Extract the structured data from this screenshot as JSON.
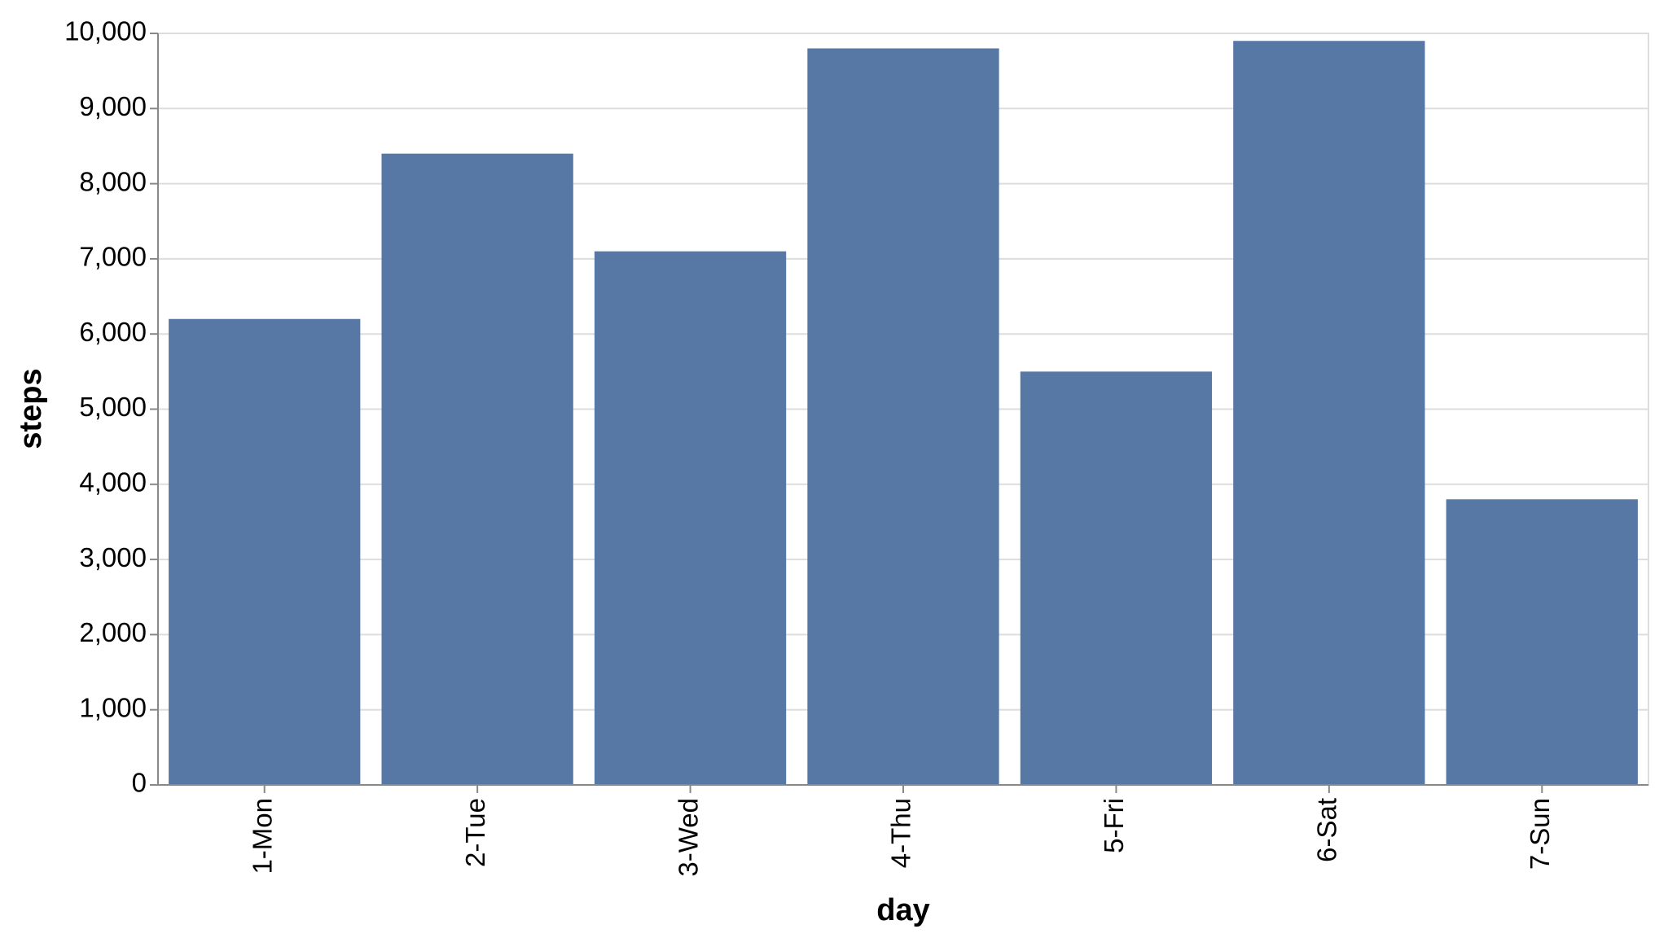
{
  "chart_data": {
    "type": "bar",
    "x_label": "day",
    "y_label": "steps",
    "categories": [
      "1-Mon",
      "2-Tue",
      "3-Wed",
      "4-Thu",
      "5-Fri",
      "6-Sat",
      "7-Sun"
    ],
    "values": [
      6200,
      8400,
      7100,
      9800,
      5500,
      9900,
      3800
    ],
    "color": "#5778a4",
    "ylim": [
      0,
      10000
    ],
    "yticks": [
      0,
      {
        "value": 1000,
        "label": "1,000"
      },
      {
        "value": 2000,
        "label": "2,000"
      },
      {
        "value": 3000,
        "label": "3,000"
      },
      {
        "value": 4000,
        "label": "4,000"
      },
      {
        "value": 5000,
        "label": "5,000"
      },
      {
        "value": 6000,
        "label": "6,000"
      },
      {
        "value": 7000,
        "label": "7,000"
      },
      {
        "value": 8000,
        "label": "8,000"
      },
      {
        "value": 9000,
        "label": "9,000"
      },
      {
        "value": 10000,
        "label": "10,000"
      }
    ],
    "grid": true
  }
}
